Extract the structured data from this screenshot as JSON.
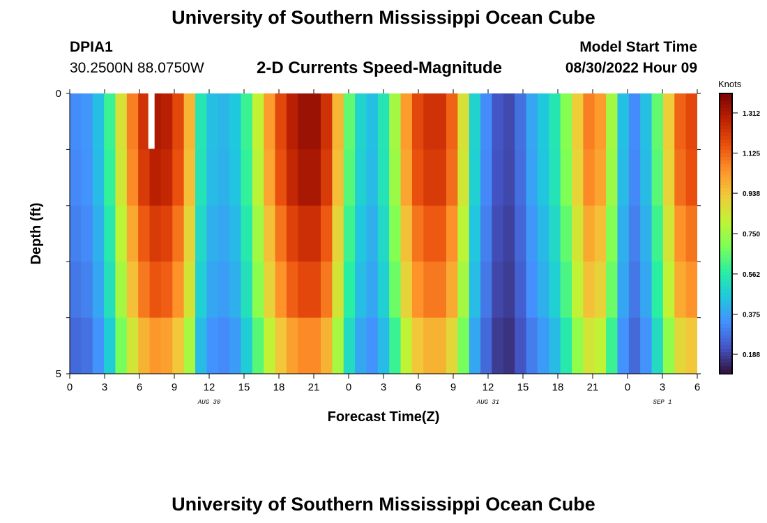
{
  "header": {
    "title": "University of Southern Mississippi Ocean Cube",
    "station_id": "DPIA1",
    "station_coords": "30.2500N  88.0750W",
    "subtitle": "2-D Currents Speed-Magnitude",
    "model_label": "Model Start Time",
    "model_value": "08/30/2022 Hour 09"
  },
  "footer": {
    "title": "University of Southern Mississippi Ocean Cube"
  },
  "chart_data": {
    "type": "heatmap",
    "title": "2-D Currents Speed-Magnitude",
    "xlabel": "Forecast Time(Z)",
    "ylabel": "Depth (ft)",
    "x_start_hour": 0,
    "x_end_hour": 54,
    "x_step_hours": 1,
    "x_tick_labels": [
      "0",
      "3",
      "6",
      "9",
      "12",
      "15",
      "18",
      "21",
      "0",
      "3",
      "6",
      "9",
      "12",
      "15",
      "18",
      "21",
      "0",
      "3",
      "6"
    ],
    "date_labels": [
      {
        "text": "AUG 30",
        "hour": 12
      },
      {
        "text": "AUG 31",
        "hour": 36
      },
      {
        "text": "SEP 1",
        "hour": 51
      }
    ],
    "y_tick_labels": [
      "0",
      "5"
    ],
    "ylim": [
      0,
      5
    ],
    "depth_bins": [
      {
        "depth_ft": 0.5,
        "scale": 1.08
      },
      {
        "depth_ft": 1.5,
        "scale": 1.06
      },
      {
        "depth_ft": 2.5,
        "scale": 1.0
      },
      {
        "depth_ft": 3.5,
        "scale": 0.95
      },
      {
        "depth_ft": 4.5,
        "scale": 0.85
      }
    ],
    "speed_knots": [
      0.3,
      0.32,
      0.4,
      0.55,
      0.8,
      1.0,
      1.15,
      1.22,
      1.2,
      1.1,
      0.9,
      0.5,
      0.4,
      0.38,
      0.42,
      0.55,
      0.75,
      0.95,
      1.1,
      1.2,
      1.25,
      1.25,
      1.15,
      0.9,
      0.6,
      0.45,
      0.4,
      0.5,
      0.7,
      0.95,
      1.1,
      1.15,
      1.15,
      1.05,
      0.8,
      0.45,
      0.3,
      0.2,
      0.18,
      0.25,
      0.35,
      0.42,
      0.5,
      0.65,
      0.85,
      1.0,
      0.95,
      0.7,
      0.4,
      0.3,
      0.4,
      0.6,
      0.85,
      1.05,
      1.1
    ],
    "units": "Knots",
    "colorbar_ticks": [
      "1.312",
      "1.125",
      "0.938",
      "0.750",
      "0.562",
      "0.375",
      "0.188"
    ],
    "colorbar_range": [
      0.094,
      1.406
    ],
    "colormap": [
      "#30123b",
      "#4454c4",
      "#4490fe",
      "#1fc8de",
      "#29efa2",
      "#7eff55",
      "#c1f334",
      "#f1ca3a",
      "#fe922a",
      "#ea4f0d",
      "#be2102",
      "#7a0403"
    ],
    "missing_marker": {
      "hour": 7,
      "depth_ft": 0.5
    }
  }
}
